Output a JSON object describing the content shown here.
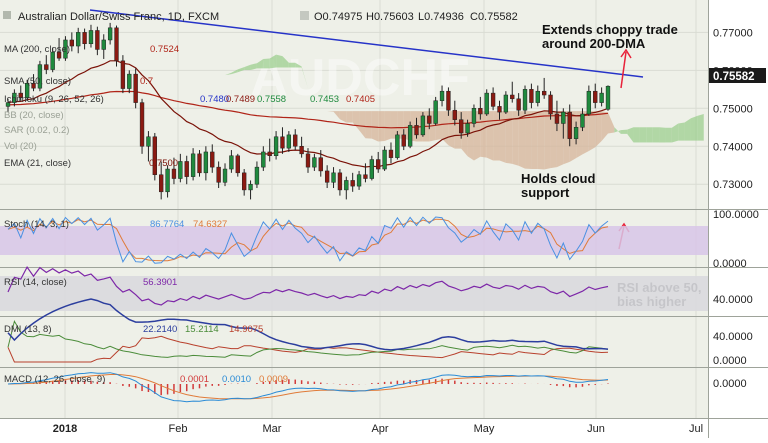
{
  "header": {
    "symbol": "Australian Dollar/Swiss Franc, 1D, FXCM",
    "o": "O0.74975",
    "h": "H0.75603",
    "l": "L0.74936",
    "c": "C0.75582"
  },
  "colors": {
    "panel_bg": "#eef0e8",
    "grid": "#d9dcd3",
    "up": "#1f8a3e",
    "down": "#8b1a12",
    "trendline": "#2633c8",
    "annotation_arrow": "#e8223a",
    "sma": "#b02418",
    "ema": "#7a1208",
    "cloud_bull": "#9ccf8f",
    "cloud_bear": "#d6b49a",
    "stoch_band": "#d7c6e8",
    "stoch_k": "#4a90e2",
    "stoch_d": "#e07b39",
    "rsi_line": "#7d27a8",
    "rsi_band": "#d9d9de",
    "dmi_adx": "#2c3e9e",
    "dmi_plus": "#4b8c3a",
    "dmi_minus": "#b8402c",
    "macd_line": "#2a8bd6",
    "macd_signal": "#e07b39",
    "macd_hist": "#d23a3a",
    "price_label_bg": "#1a1a1a"
  },
  "indicators": {
    "ma": {
      "label": "MA (200, close)",
      "value": "0.7524"
    },
    "sma": {
      "label": "SMA (50, close)",
      "value": "0.7"
    },
    "ichimoku": {
      "label": "Ichimoku (9, 26, 52, 26)",
      "v1": "0.7480",
      "v2": "0.7489",
      "v3": "0.7558",
      "v4": "0.7453",
      "v5": "0.7405"
    },
    "bb": {
      "label": "BB (20, close)"
    },
    "sar": {
      "label": "SAR (0.02, 0.2)"
    },
    "vol": {
      "label": "Vol (20)"
    },
    "ema": {
      "label": "EMA (21, close)",
      "value": "0.7500"
    }
  },
  "annotations": {
    "top": "Extends choppy trade\naround 200-DMA",
    "cloud": "Holds cloud\nsupport",
    "rsi": "RSI above 50,\nbias higher"
  },
  "watermark": "AUDCHF\nAustralian Dollar/Swiss Franc",
  "panels": {
    "stoch": {
      "label": "Stoch (14, 3, 1)",
      "k": "86.7764",
      "d": "74.6327",
      "ticks": [
        "100.0000",
        "0.0000"
      ]
    },
    "rsi": {
      "label": "RSI (14, close)",
      "value": "56.3901",
      "ticks": [
        "40.0000"
      ]
    },
    "dmi": {
      "label": "DMI (13, 8)",
      "adx": "22.2140",
      "plus": "15.2114",
      "minus": "14.9075",
      "ticks": [
        "40.0000",
        "0.0000"
      ]
    },
    "macd": {
      "label": "MACD (12, 26, close, 9)",
      "macd": "0.0001",
      "signal": "0.0010",
      "hist": "0.0009",
      "ticks": [
        "0.0000"
      ]
    }
  },
  "price_axis": {
    "ticks": [
      "0.77000",
      "0.76000",
      "0.75000",
      "0.74000",
      "0.73000"
    ],
    "last_price": "0.75582"
  },
  "time_axis": [
    "2018",
    "Feb",
    "Mar",
    "Apr",
    "May",
    "Jun",
    "Jul"
  ],
  "chart_data": {
    "type": "candlestick",
    "title": "Australian Dollar/Swiss Franc, 1D, FXCM",
    "ylim": [
      0.724,
      0.778
    ],
    "x_range": [
      "2017-12-26",
      "2018-07-06"
    ],
    "last_price": 0.75582,
    "ohlc": [
      [
        0.7505,
        0.7525,
        0.749,
        0.7515
      ],
      [
        0.7515,
        0.755,
        0.7505,
        0.754
      ],
      [
        0.754,
        0.756,
        0.752,
        0.7528
      ],
      [
        0.7528,
        0.7575,
        0.752,
        0.7566
      ],
      [
        0.7566,
        0.759,
        0.7545,
        0.7553
      ],
      [
        0.7553,
        0.7625,
        0.7545,
        0.7615
      ],
      [
        0.7615,
        0.764,
        0.759,
        0.7602
      ],
      [
        0.7602,
        0.766,
        0.7595,
        0.7648
      ],
      [
        0.7648,
        0.7685,
        0.7625,
        0.7632
      ],
      [
        0.7632,
        0.769,
        0.7625,
        0.768
      ],
      [
        0.768,
        0.77,
        0.765,
        0.7664
      ],
      [
        0.7664,
        0.7712,
        0.7645,
        0.77
      ],
      [
        0.77,
        0.771,
        0.7655,
        0.767
      ],
      [
        0.767,
        0.772,
        0.766,
        0.7705
      ],
      [
        0.7705,
        0.7715,
        0.764,
        0.7655
      ],
      [
        0.7655,
        0.7695,
        0.763,
        0.768
      ],
      [
        0.768,
        0.7725,
        0.7668,
        0.7712
      ],
      [
        0.7712,
        0.7718,
        0.761,
        0.7625
      ],
      [
        0.7625,
        0.764,
        0.754,
        0.7552
      ],
      [
        0.7552,
        0.76,
        0.754,
        0.759
      ],
      [
        0.759,
        0.7605,
        0.75,
        0.7515
      ],
      [
        0.7515,
        0.7525,
        0.738,
        0.74
      ],
      [
        0.74,
        0.744,
        0.736,
        0.7425
      ],
      [
        0.7425,
        0.7435,
        0.731,
        0.7325
      ],
      [
        0.7325,
        0.736,
        0.726,
        0.728
      ],
      [
        0.728,
        0.735,
        0.7265,
        0.734
      ],
      [
        0.734,
        0.737,
        0.73,
        0.7315
      ],
      [
        0.7315,
        0.738,
        0.7305,
        0.736
      ],
      [
        0.736,
        0.7375,
        0.73,
        0.732
      ],
      [
        0.732,
        0.7395,
        0.731,
        0.738
      ],
      [
        0.738,
        0.739,
        0.732,
        0.733
      ],
      [
        0.733,
        0.74,
        0.731,
        0.7385
      ],
      [
        0.7385,
        0.7405,
        0.733,
        0.7345
      ],
      [
        0.7345,
        0.736,
        0.729,
        0.7305
      ],
      [
        0.7305,
        0.7355,
        0.7295,
        0.734
      ],
      [
        0.734,
        0.739,
        0.733,
        0.7375
      ],
      [
        0.7375,
        0.738,
        0.732,
        0.733
      ],
      [
        0.733,
        0.734,
        0.727,
        0.7285
      ],
      [
        0.7285,
        0.731,
        0.726,
        0.73
      ],
      [
        0.73,
        0.736,
        0.729,
        0.7345
      ],
      [
        0.7345,
        0.74,
        0.7335,
        0.7385
      ],
      [
        0.7385,
        0.742,
        0.736,
        0.7375
      ],
      [
        0.7375,
        0.744,
        0.7365,
        0.7425
      ],
      [
        0.7425,
        0.745,
        0.738,
        0.7395
      ],
      [
        0.7395,
        0.744,
        0.7385,
        0.743
      ],
      [
        0.743,
        0.7445,
        0.739,
        0.74
      ],
      [
        0.74,
        0.7425,
        0.737,
        0.738
      ],
      [
        0.738,
        0.7395,
        0.733,
        0.7345
      ],
      [
        0.7345,
        0.738,
        0.7335,
        0.737
      ],
      [
        0.737,
        0.739,
        0.732,
        0.7335
      ],
      [
        0.7335,
        0.735,
        0.729,
        0.7305
      ],
      [
        0.7305,
        0.7345,
        0.729,
        0.733
      ],
      [
        0.733,
        0.734,
        0.727,
        0.7285
      ],
      [
        0.7285,
        0.732,
        0.726,
        0.731
      ],
      [
        0.731,
        0.733,
        0.728,
        0.7295
      ],
      [
        0.7295,
        0.7335,
        0.7285,
        0.7325
      ],
      [
        0.7325,
        0.7355,
        0.7305,
        0.7315
      ],
      [
        0.7315,
        0.7375,
        0.731,
        0.7365
      ],
      [
        0.7365,
        0.7385,
        0.733,
        0.734
      ],
      [
        0.734,
        0.74,
        0.7335,
        0.739
      ],
      [
        0.739,
        0.741,
        0.7355,
        0.737
      ],
      [
        0.737,
        0.744,
        0.7365,
        0.743
      ],
      [
        0.743,
        0.7445,
        0.739,
        0.74
      ],
      [
        0.74,
        0.7465,
        0.7395,
        0.7455
      ],
      [
        0.7455,
        0.7475,
        0.742,
        0.743
      ],
      [
        0.743,
        0.749,
        0.7425,
        0.748
      ],
      [
        0.748,
        0.75,
        0.7445,
        0.746
      ],
      [
        0.746,
        0.753,
        0.7455,
        0.752
      ],
      [
        0.752,
        0.756,
        0.7505,
        0.7545
      ],
      [
        0.7545,
        0.7555,
        0.748,
        0.7495
      ],
      [
        0.7495,
        0.752,
        0.7455,
        0.747
      ],
      [
        0.747,
        0.749,
        0.742,
        0.7435
      ],
      [
        0.7435,
        0.747,
        0.7425,
        0.746
      ],
      [
        0.746,
        0.751,
        0.745,
        0.75
      ],
      [
        0.75,
        0.753,
        0.747,
        0.7485
      ],
      [
        0.7485,
        0.755,
        0.748,
        0.754
      ],
      [
        0.754,
        0.7555,
        0.7495,
        0.7505
      ],
      [
        0.7505,
        0.752,
        0.747,
        0.749
      ],
      [
        0.749,
        0.7545,
        0.7485,
        0.7535
      ],
      [
        0.7535,
        0.757,
        0.7515,
        0.7525
      ],
      [
        0.7525,
        0.754,
        0.748,
        0.7495
      ],
      [
        0.7495,
        0.756,
        0.7485,
        0.755
      ],
      [
        0.755,
        0.7565,
        0.75,
        0.7515
      ],
      [
        0.7515,
        0.756,
        0.7505,
        0.7545
      ],
      [
        0.7545,
        0.758,
        0.7525,
        0.7535
      ],
      [
        0.7535,
        0.7545,
        0.747,
        0.7485
      ],
      [
        0.7485,
        0.752,
        0.744,
        0.746
      ],
      [
        0.746,
        0.75,
        0.742,
        0.749
      ],
      [
        0.749,
        0.751,
        0.74,
        0.742
      ],
      [
        0.742,
        0.7465,
        0.7405,
        0.745
      ],
      [
        0.745,
        0.75,
        0.744,
        0.7485
      ],
      [
        0.7485,
        0.756,
        0.748,
        0.7545
      ],
      [
        0.7545,
        0.7565,
        0.75,
        0.7515
      ],
      [
        0.7515,
        0.7555,
        0.7505,
        0.754
      ],
      [
        0.74975,
        0.75603,
        0.74936,
        0.75582
      ]
    ],
    "annotations": [
      "Extends choppy trade around 200-DMA",
      "Holds cloud support",
      "RSI above 50, bias higher"
    ]
  }
}
